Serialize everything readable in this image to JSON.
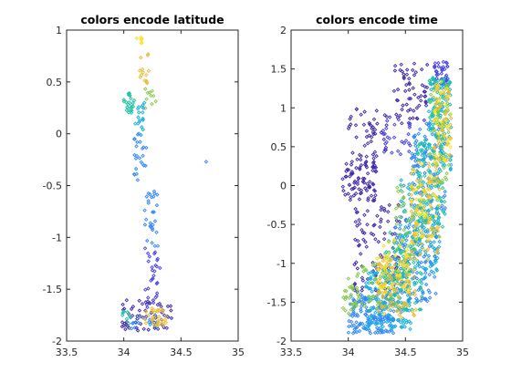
{
  "colormap": [
    "#3e26a8",
    "#4742e7",
    "#2e86fa",
    "#15aede",
    "#1ec0a4",
    "#86c84a",
    "#e6bc39",
    "#f9e11f"
  ],
  "axes_color": "#262626",
  "chart_data": [
    {
      "type": "scatter",
      "title": "colors encode latitude",
      "xlim": [
        33.5,
        35
      ],
      "ylim": [
        -2,
        1
      ],
      "xticks": [
        "33.5",
        "34",
        "34.5",
        "35"
      ],
      "yticks": [
        "-2",
        "-1.5",
        "-1",
        "-0.5",
        "0",
        "0.5",
        "1"
      ],
      "color_encoding": "latitude",
      "marker": "small open diamond",
      "clusters": [
        {
          "x": [
            34.1,
            34.18
          ],
          "y": [
            0.85,
            0.93
          ],
          "color": "#f9e11f",
          "n": 6
        },
        {
          "x": [
            34.13,
            34.22
          ],
          "y": [
            0.42,
            0.82
          ],
          "color": "#e6bc39",
          "n": 14
        },
        {
          "x": [
            34.0,
            34.1
          ],
          "y": [
            0.2,
            0.4
          ],
          "color": "#1ec0a4",
          "n": 24
        },
        {
          "x": [
            34.18,
            34.28
          ],
          "y": [
            0.18,
            0.45
          ],
          "color": "#86c84a",
          "n": 10
        },
        {
          "x": [
            34.1,
            34.2
          ],
          "y": [
            0.0,
            0.3
          ],
          "color": "#15aede",
          "n": 18
        },
        {
          "x": [
            34.08,
            34.2
          ],
          "y": [
            -0.45,
            0.0
          ],
          "color": "#2e86fa",
          "n": 24
        },
        {
          "x": [
            34.18,
            34.3
          ],
          "y": [
            -1.1,
            -0.55
          ],
          "color": "#2e86fa",
          "n": 28
        },
        {
          "x": [
            34.18,
            34.32
          ],
          "y": [
            -1.7,
            -1.1
          ],
          "color": "#4742e7",
          "n": 30
        },
        {
          "x": [
            33.98,
            34.42
          ],
          "y": [
            -1.9,
            -1.6
          ],
          "color": "#3e26a8",
          "n": 60
        },
        {
          "x": [
            34.02,
            34.3
          ],
          "y": [
            -1.88,
            -1.75
          ],
          "color": "#2e86fa",
          "n": 20
        },
        {
          "x": [
            34.18,
            34.38
          ],
          "y": [
            -1.85,
            -1.68
          ],
          "color": "#e6bc39",
          "n": 34
        },
        {
          "x": [
            33.98,
            34.06
          ],
          "y": [
            -1.85,
            -1.7
          ],
          "color": "#1ec0a4",
          "n": 8
        }
      ],
      "points": [
        {
          "x": 34.72,
          "y": -0.27,
          "color": "#2e86fa"
        }
      ]
    },
    {
      "type": "scatter",
      "title": "colors encode time",
      "xlim": [
        33.5,
        35
      ],
      "ylim": [
        -2,
        2
      ],
      "xticks": [
        "33.5",
        "34",
        "34.5",
        "35"
      ],
      "yticks": [
        "-2",
        "-1.5",
        "-1",
        "-0.5",
        "0",
        "0.5",
        "1",
        "1.5",
        "2"
      ],
      "color_encoding": "time",
      "marker": "small open diamond",
      "clusters": [
        {
          "x": [
            33.95,
            34.25
          ],
          "y": [
            -0.2,
            0.4
          ],
          "color": "#3e26a8",
          "n": 90
        },
        {
          "x": [
            34.05,
            34.45
          ],
          "y": [
            -1.4,
            -0.2
          ],
          "color": "#3e26a8",
          "n": 90
        },
        {
          "x": [
            34.0,
            34.35
          ],
          "y": [
            0.4,
            1.0
          ],
          "color": "#3e26a8",
          "n": 40
        },
        {
          "x": [
            34.4,
            34.7
          ],
          "y": [
            0.8,
            1.6
          ],
          "color": "#3e26a8",
          "n": 60
        },
        {
          "x": [
            34.3,
            34.55
          ],
          "y": [
            0.4,
            0.9
          ],
          "color": "#4742e7",
          "n": 30
        },
        {
          "x": [
            34.75,
            34.88
          ],
          "y": [
            1.3,
            1.6
          ],
          "color": "#4742e7",
          "n": 40
        },
        {
          "x": [
            34.0,
            34.4
          ],
          "y": [
            -1.9,
            -1.4
          ],
          "color": "#2e86fa",
          "n": 160
        },
        {
          "x": [
            34.4,
            34.78
          ],
          "y": [
            -1.5,
            -0.4
          ],
          "color": "#2e86fa",
          "n": 160
        },
        {
          "x": [
            34.55,
            34.85
          ],
          "y": [
            -0.4,
            0.8
          ],
          "color": "#2e86fa",
          "n": 120
        },
        {
          "x": [
            34.15,
            34.55
          ],
          "y": [
            -1.85,
            -1.1
          ],
          "color": "#15aede",
          "n": 140
        },
        {
          "x": [
            34.45,
            34.8
          ],
          "y": [
            -1.2,
            0.2
          ],
          "color": "#15aede",
          "n": 120
        },
        {
          "x": [
            34.7,
            34.9
          ],
          "y": [
            0.2,
            1.4
          ],
          "color": "#15aede",
          "n": 80
        },
        {
          "x": [
            34.3,
            34.65
          ],
          "y": [
            -1.6,
            -0.6
          ],
          "color": "#1ec0a4",
          "n": 100
        },
        {
          "x": [
            34.6,
            34.85
          ],
          "y": [
            -0.6,
            0.6
          ],
          "color": "#1ec0a4",
          "n": 80
        },
        {
          "x": [
            34.7,
            34.9
          ],
          "y": [
            0.6,
            1.4
          ],
          "color": "#1ec0a4",
          "n": 60
        },
        {
          "x": [
            34.0,
            34.45
          ],
          "y": [
            -1.6,
            -1.0
          ],
          "color": "#86c84a",
          "n": 60
        },
        {
          "x": [
            34.4,
            34.7
          ],
          "y": [
            -1.0,
            0.0
          ],
          "color": "#86c84a",
          "n": 60
        },
        {
          "x": [
            34.7,
            34.88
          ],
          "y": [
            0.0,
            1.3
          ],
          "color": "#86c84a",
          "n": 50
        },
        {
          "x": [
            33.95,
            34.1
          ],
          "y": [
            -1.7,
            -1.3
          ],
          "color": "#86c84a",
          "n": 20
        },
        {
          "x": [
            34.25,
            34.6
          ],
          "y": [
            -1.7,
            -0.9
          ],
          "color": "#e6bc39",
          "n": 90
        },
        {
          "x": [
            34.55,
            34.8
          ],
          "y": [
            -0.9,
            0.3
          ],
          "color": "#e6bc39",
          "n": 70
        },
        {
          "x": [
            34.75,
            34.9
          ],
          "y": [
            0.3,
            1.3
          ],
          "color": "#e6bc39",
          "n": 50
        },
        {
          "x": [
            34.25,
            34.55
          ],
          "y": [
            -1.4,
            -0.7
          ],
          "color": "#f9e11f",
          "n": 60
        },
        {
          "x": [
            34.55,
            34.78
          ],
          "y": [
            -0.7,
            0.3
          ],
          "color": "#f9e11f",
          "n": 50
        },
        {
          "x": [
            34.75,
            34.9
          ],
          "y": [
            0.3,
            1.4
          ],
          "color": "#f9e11f",
          "n": 40
        }
      ],
      "points": []
    }
  ]
}
